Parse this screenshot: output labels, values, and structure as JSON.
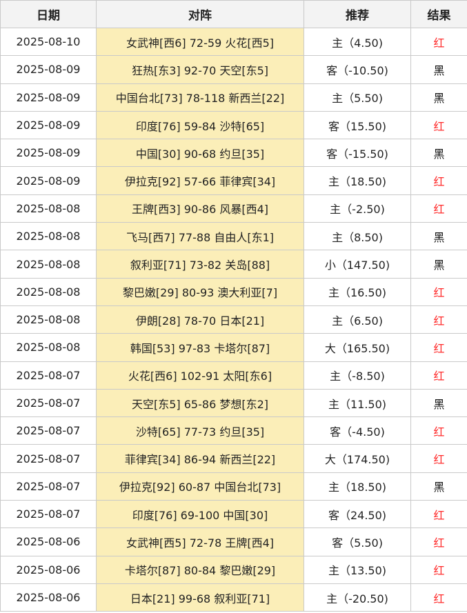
{
  "headers": {
    "date": "日期",
    "match": "对阵",
    "pick": "推荐",
    "result": "结果"
  },
  "colors": {
    "match_cell_bg": "#fbeeb8",
    "red_result": "#ff2a2a",
    "black_result": "#111111"
  },
  "rows": [
    {
      "date": "2025-08-10",
      "match": "女武神[西6] 72-59 火花[西5]",
      "pick": "主（4.50)",
      "result": "红"
    },
    {
      "date": "2025-08-09",
      "match": "狂热[东3] 92-70 天空[东5]",
      "pick": "客（-10.50)",
      "result": "黑"
    },
    {
      "date": "2025-08-09",
      "match": "中国台北[73] 78-118 新西兰[22]",
      "pick": "主（5.50)",
      "result": "黑"
    },
    {
      "date": "2025-08-09",
      "match": "印度[76] 59-84 沙特[65]",
      "pick": "客（15.50)",
      "result": "红"
    },
    {
      "date": "2025-08-09",
      "match": "中国[30] 90-68 约旦[35]",
      "pick": "客（-15.50)",
      "result": "黑"
    },
    {
      "date": "2025-08-09",
      "match": "伊拉克[92] 57-66 菲律宾[34]",
      "pick": "主（18.50)",
      "result": "红"
    },
    {
      "date": "2025-08-08",
      "match": "王牌[西3] 90-86 风暴[西4]",
      "pick": "主（-2.50)",
      "result": "红"
    },
    {
      "date": "2025-08-08",
      "match": "飞马[西7] 77-88 自由人[东1]",
      "pick": "主（8.50)",
      "result": "黑"
    },
    {
      "date": "2025-08-08",
      "match": "叙利亚[71] 73-82 关岛[88]",
      "pick": "小（147.50)",
      "result": "黑"
    },
    {
      "date": "2025-08-08",
      "match": "黎巴嫩[29] 80-93 澳大利亚[7]",
      "pick": "主（16.50)",
      "result": "红"
    },
    {
      "date": "2025-08-08",
      "match": "伊朗[28] 78-70 日本[21]",
      "pick": "主（6.50)",
      "result": "红"
    },
    {
      "date": "2025-08-08",
      "match": "韩国[53] 97-83 卡塔尔[87]",
      "pick": "大（165.50)",
      "result": "红"
    },
    {
      "date": "2025-08-07",
      "match": "火花[西6] 102-91 太阳[东6]",
      "pick": "主（-8.50)",
      "result": "红"
    },
    {
      "date": "2025-08-07",
      "match": "天空[东5] 65-86 梦想[东2]",
      "pick": "主（11.50)",
      "result": "黑"
    },
    {
      "date": "2025-08-07",
      "match": "沙特[65] 77-73 约旦[35]",
      "pick": "客（-4.50)",
      "result": "红"
    },
    {
      "date": "2025-08-07",
      "match": "菲律宾[34] 86-94 新西兰[22]",
      "pick": "大（174.50)",
      "result": "红"
    },
    {
      "date": "2025-08-07",
      "match": "伊拉克[92] 60-87 中国台北[73]",
      "pick": "主（18.50)",
      "result": "黑"
    },
    {
      "date": "2025-08-07",
      "match": "印度[76] 69-100 中国[30]",
      "pick": "客（24.50)",
      "result": "红"
    },
    {
      "date": "2025-08-06",
      "match": "女武神[西5] 72-78 王牌[西4]",
      "pick": "客（5.50)",
      "result": "红"
    },
    {
      "date": "2025-08-06",
      "match": "卡塔尔[87] 80-84 黎巴嫩[29]",
      "pick": "主（13.50)",
      "result": "红"
    },
    {
      "date": "2025-08-06",
      "match": "日本[21] 99-68 叙利亚[71]",
      "pick": "主（-20.50)",
      "result": "红"
    }
  ]
}
